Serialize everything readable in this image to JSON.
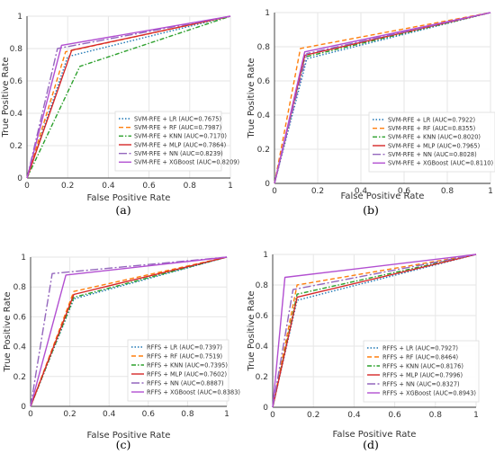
{
  "chart_data": [
    {
      "type": "line",
      "panel_label": "(a)",
      "xlabel": "False Positive Rate",
      "ylabel": "True Positive Rate",
      "xlim": [
        0,
        1
      ],
      "ylim": [
        0,
        1
      ],
      "xticks": [
        "0",
        "0.2",
        "0.4",
        "0.6",
        "0.8",
        "1"
      ],
      "yticks": [
        "0",
        "0.2",
        "0.4",
        "0.6",
        "0.8",
        "1"
      ],
      "grid": true,
      "legend_position": "lower-right",
      "series": [
        {
          "name": "SVM-RFE + LR (AUC=0.7675)",
          "color": "#1f77b4",
          "dash": "dot",
          "x": [
            0,
            0.2,
            1
          ],
          "y": [
            0,
            0.75,
            1
          ]
        },
        {
          "name": "SVM-RFE + RF (AUC=0.7987)",
          "color": "#ff7f0e",
          "dash": "dash",
          "x": [
            0,
            0.19,
            1
          ],
          "y": [
            0,
            0.78,
            1
          ]
        },
        {
          "name": "SVM-RFE + KNN (AUC=0.7170)",
          "color": "#2ca02c",
          "dash": "dashdot",
          "x": [
            0,
            0.26,
            1
          ],
          "y": [
            0,
            0.69,
            1
          ]
        },
        {
          "name": "SVM-RFE + MLP (AUC=0.7864)",
          "color": "#d62728",
          "dash": "solid",
          "x": [
            0,
            0.22,
            1
          ],
          "y": [
            0,
            0.79,
            1
          ]
        },
        {
          "name": "SVM-RFE + NN (AUC=0.8239)",
          "color": "#9467bd",
          "dash": "longdashdot",
          "x": [
            0,
            0.15,
            1
          ],
          "y": [
            0,
            0.8,
            1
          ]
        },
        {
          "name": "SVM-RFE + XGBoost (AUC=0.8209)",
          "color": "#b24fd1",
          "dash": "solid",
          "x": [
            0,
            0.17,
            1
          ],
          "y": [
            0,
            0.82,
            1
          ]
        }
      ]
    },
    {
      "type": "line",
      "panel_label": "(b)",
      "xlabel": "False Positive Rate",
      "ylabel": "True Positive Rate",
      "xlim": [
        0,
        1
      ],
      "ylim": [
        0,
        1
      ],
      "xticks": [
        "0",
        "0.2",
        "0.4",
        "0.6",
        "0.8",
        "1"
      ],
      "yticks": [
        "0",
        "0.2",
        "0.4",
        "0.6",
        "0.8",
        "1"
      ],
      "grid": true,
      "legend_position": "lower-right",
      "series": [
        {
          "name": "SVM-RFE + LR (AUC=0.7922)",
          "color": "#1f77b4",
          "dash": "dot",
          "x": [
            0,
            0.15,
            1
          ],
          "y": [
            0,
            0.73,
            1
          ]
        },
        {
          "name": "SVM-RFE + RF (AUC=0.8355)",
          "color": "#ff7f0e",
          "dash": "dash",
          "x": [
            0,
            0.12,
            1
          ],
          "y": [
            0,
            0.79,
            1
          ]
        },
        {
          "name": "SVM-RFE + KNN (AUC=0.8020)",
          "color": "#2ca02c",
          "dash": "dashdot",
          "x": [
            0,
            0.14,
            1
          ],
          "y": [
            0,
            0.74,
            1
          ]
        },
        {
          "name": "SVM-RFE + MLP (AUC=0.7965)",
          "color": "#d62728",
          "dash": "solid",
          "x": [
            0,
            0.14,
            1
          ],
          "y": [
            0,
            0.75,
            1
          ]
        },
        {
          "name": "SVM-RFE + NN (AUC=0.8028)",
          "color": "#9467bd",
          "dash": "longdashdot",
          "x": [
            0,
            0.15,
            1
          ],
          "y": [
            0,
            0.76,
            1
          ]
        },
        {
          "name": "SVM-RFE + XGBoost (AUC=0.8110)",
          "color": "#b24fd1",
          "dash": "solid",
          "x": [
            0,
            0.14,
            1
          ],
          "y": [
            0,
            0.77,
            1
          ]
        }
      ]
    },
    {
      "type": "line",
      "panel_label": "(c)",
      "xlabel": "False Positive Rate",
      "ylabel": "True Positive Rate",
      "xlim": [
        0,
        1
      ],
      "ylim": [
        0,
        1
      ],
      "xticks": [
        "0",
        "0.2",
        "0.4",
        "0.6",
        "0.8",
        "1"
      ],
      "yticks": [
        "0",
        "0.2",
        "0.4",
        "0.6",
        "0.8",
        "1"
      ],
      "grid": true,
      "legend_position": "lower-right",
      "series": [
        {
          "name": "RFFS + LR (AUC=0.7397)",
          "color": "#1f77b4",
          "dash": "dot",
          "x": [
            0,
            0.22,
            1
          ],
          "y": [
            0,
            0.72,
            1
          ]
        },
        {
          "name": "RFFS + RF (AUC=0.7519)",
          "color": "#ff7f0e",
          "dash": "dash",
          "x": [
            0,
            0.22,
            1
          ],
          "y": [
            0,
            0.77,
            1
          ]
        },
        {
          "name": "RFFS + KNN (AUC=0.7395)",
          "color": "#2ca02c",
          "dash": "dashdot",
          "x": [
            0,
            0.22,
            1
          ],
          "y": [
            0,
            0.73,
            1
          ]
        },
        {
          "name": "RFFS + MLP (AUC=0.7602)",
          "color": "#d62728",
          "dash": "solid",
          "x": [
            0,
            0.22,
            1
          ],
          "y": [
            0,
            0.75,
            1
          ]
        },
        {
          "name": "RFFS + NN (AUC=0.8887)",
          "color": "#9467bd",
          "dash": "longdashdot",
          "x": [
            0,
            0.11,
            1
          ],
          "y": [
            0,
            0.89,
            1
          ]
        },
        {
          "name": "RFFS + XGBoost (AUC=0.8383)",
          "color": "#b24fd1",
          "dash": "solid",
          "x": [
            0,
            0.18,
            1
          ],
          "y": [
            0,
            0.88,
            1
          ]
        }
      ]
    },
    {
      "type": "line",
      "panel_label": "(d)",
      "xlabel": "False Positive Rate",
      "ylabel": "True Positive Rate",
      "xlim": [
        0,
        1
      ],
      "ylim": [
        0,
        1
      ],
      "xticks": [
        "0",
        "0.2",
        "0.4",
        "0.6",
        "0.8",
        "1"
      ],
      "yticks": [
        "0",
        "0.2",
        "0.4",
        "0.6",
        "0.8",
        "1"
      ],
      "grid": true,
      "legend_position": "lower-right",
      "series": [
        {
          "name": "RFFS + LR (AUC=0.7927)",
          "color": "#1f77b4",
          "dash": "dot",
          "x": [
            0,
            0.12,
            1
          ],
          "y": [
            0,
            0.7,
            1
          ]
        },
        {
          "name": "RFFS + RF (AUC=0.8464)",
          "color": "#ff7f0e",
          "dash": "dash",
          "x": [
            0,
            0.12,
            1
          ],
          "y": [
            0,
            0.8,
            1
          ]
        },
        {
          "name": "RFFS + KNN (AUC=0.8176)",
          "color": "#2ca02c",
          "dash": "dashdot",
          "x": [
            0,
            0.12,
            1
          ],
          "y": [
            0,
            0.74,
            1
          ]
        },
        {
          "name": "RFFS + MLP (AUC=0.7996)",
          "color": "#d62728",
          "dash": "solid",
          "x": [
            0,
            0.12,
            1
          ],
          "y": [
            0,
            0.72,
            1
          ]
        },
        {
          "name": "RFFS + NN (AUC=0.8327)",
          "color": "#9467bd",
          "dash": "longdashdot",
          "x": [
            0,
            0.1,
            1
          ],
          "y": [
            0,
            0.77,
            1
          ]
        },
        {
          "name": "RFFS + XGBoost (AUC=0.8943)",
          "color": "#b24fd1",
          "dash": "solid",
          "x": [
            0,
            0.06,
            1
          ],
          "y": [
            0,
            0.85,
            1
          ]
        }
      ]
    }
  ]
}
